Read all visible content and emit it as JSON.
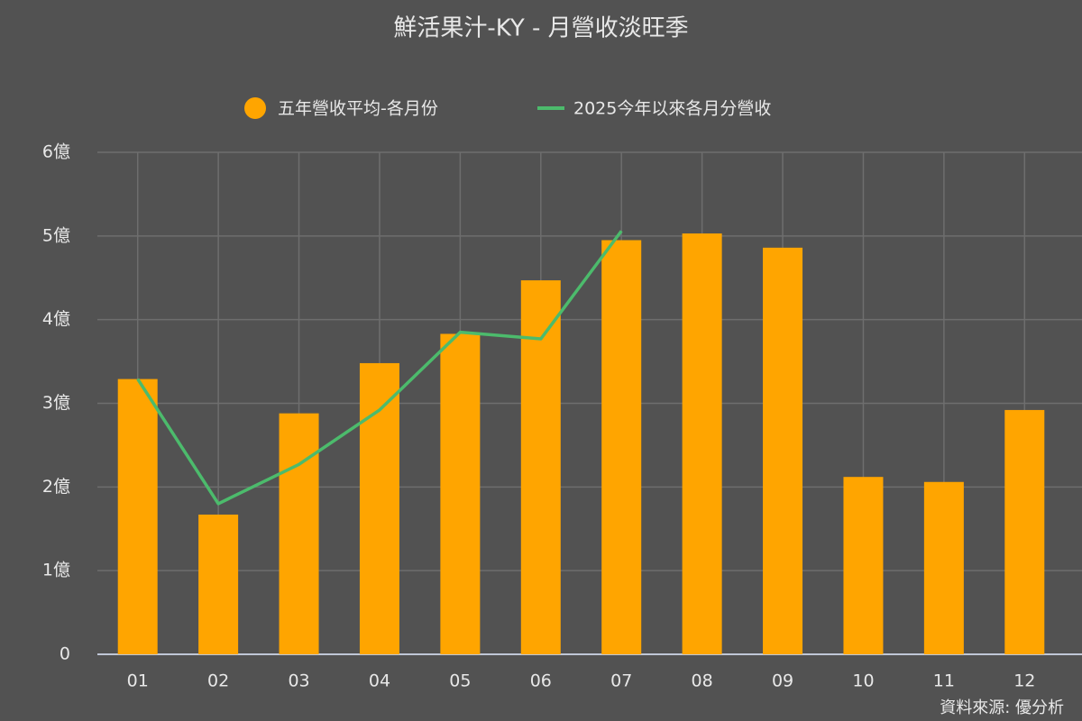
{
  "chart_data": {
    "type": "bar",
    "title": "鮮活果汁-KY - 月營收淡旺季",
    "source": "資料來源: 優分析",
    "categories": [
      "01",
      "02",
      "03",
      "04",
      "05",
      "06",
      "07",
      "08",
      "09",
      "10",
      "11",
      "12"
    ],
    "series": [
      {
        "name": "五年營收平均-各月份",
        "type": "bar",
        "color": "#ffa500",
        "values": [
          3.29,
          1.67,
          2.88,
          3.48,
          3.83,
          4.47,
          4.95,
          5.03,
          4.86,
          2.12,
          2.06,
          2.92
        ]
      },
      {
        "name": "2025今年以來各月分營收",
        "type": "line",
        "color": "#4cbb6c",
        "values": [
          3.29,
          1.8,
          2.27,
          2.92,
          3.85,
          3.77,
          5.06,
          null,
          null,
          null,
          null,
          null
        ]
      }
    ],
    "ylim": [
      0,
      6
    ],
    "yticks": [
      0,
      {
        "value": 1,
        "label": "1億"
      },
      {
        "value": 2,
        "label": "2億"
      },
      {
        "value": 3,
        "label": "3億"
      },
      {
        "value": 4,
        "label": "4億"
      },
      {
        "value": 5,
        "label": "5億"
      },
      {
        "value": 6,
        "label": "6億"
      }
    ],
    "grid": true
  }
}
